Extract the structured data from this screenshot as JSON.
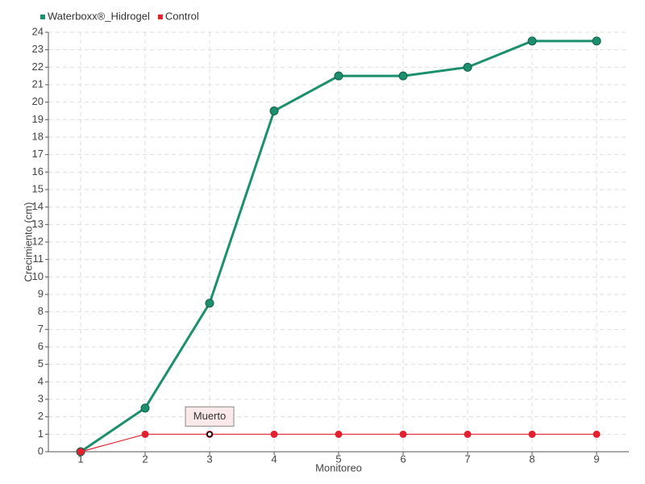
{
  "chart_data": {
    "type": "line",
    "y_label": "Crecimiento (cm)",
    "x_label": "Monitoreo",
    "categories": [
      "1",
      "2",
      "3",
      "4",
      "5",
      "6",
      "7",
      "8",
      "9"
    ],
    "series": [
      {
        "name": "Waterboxx®_Hidrogel",
        "color": "#1b8f6e",
        "values": [
          0,
          2.5,
          8.5,
          19.5,
          21.5,
          21.5,
          22,
          23.5,
          23.5
        ]
      },
      {
        "name": "Control",
        "color": "#e3202e",
        "values": [
          0,
          1,
          1,
          1,
          1,
          1,
          1,
          1,
          1
        ]
      }
    ],
    "annotations": [
      {
        "text": "Muerto",
        "series": "Control",
        "category": "3"
      }
    ],
    "ylim": [
      0,
      24
    ],
    "yticks": [
      0,
      1,
      2,
      3,
      4,
      5,
      6,
      7,
      8,
      9,
      10,
      11,
      12,
      13,
      14,
      15,
      16,
      17,
      18,
      19,
      20,
      21,
      22,
      23,
      24
    ],
    "grid": true,
    "legend": "top-left"
  }
}
